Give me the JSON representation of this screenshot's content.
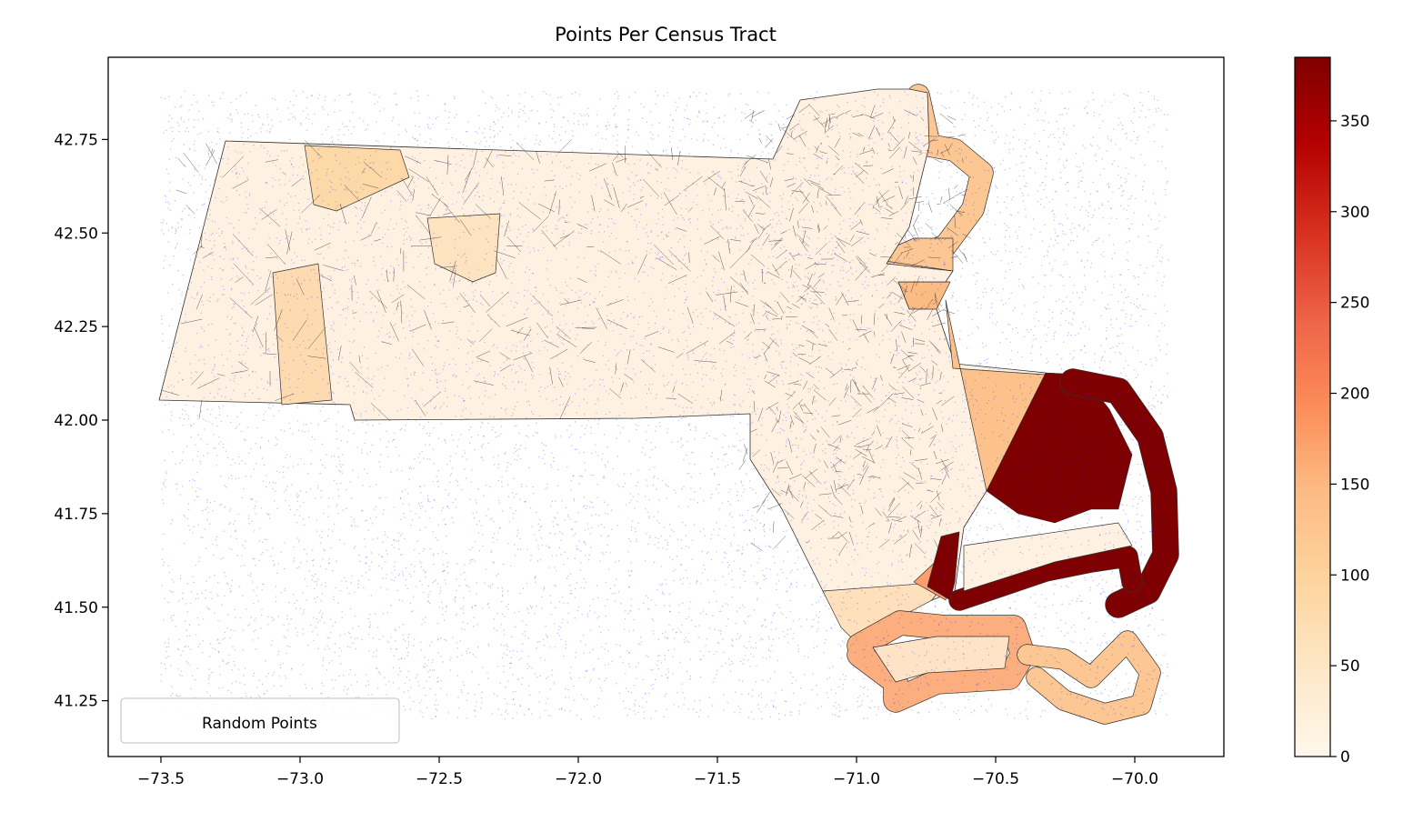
{
  "chart_data": {
    "type": "choropleth",
    "title": "Points Per Census Tract",
    "xlim": [
      -73.69,
      -69.68
    ],
    "ylim": [
      41.1,
      42.97
    ],
    "x_ticks": [
      "−73.5",
      "−73.0",
      "−72.5",
      "−72.0",
      "−71.5",
      "−71.0",
      "−70.5",
      "−70.0"
    ],
    "x_tick_values": [
      -73.5,
      -73.0,
      -72.5,
      -72.0,
      -71.5,
      -71.0,
      -70.5,
      -70.0
    ],
    "y_ticks": [
      "41.25",
      "41.50",
      "41.75",
      "42.00",
      "42.25",
      "42.50",
      "42.75"
    ],
    "y_tick_values": [
      41.25,
      41.5,
      41.75,
      42.0,
      42.25,
      42.5,
      42.75
    ],
    "legend": {
      "entries": [
        "Random Points"
      ],
      "placement": "lower-left"
    },
    "points_color": "#0000ff",
    "colorbar": {
      "colormap": "OrRd",
      "range": [
        0,
        385
      ],
      "ticks": [
        "0",
        "50",
        "100",
        "150",
        "200",
        "250",
        "300",
        "350"
      ],
      "tick_values": [
        0,
        50,
        100,
        150,
        200,
        250,
        300,
        350
      ]
    },
    "grid": false
  }
}
